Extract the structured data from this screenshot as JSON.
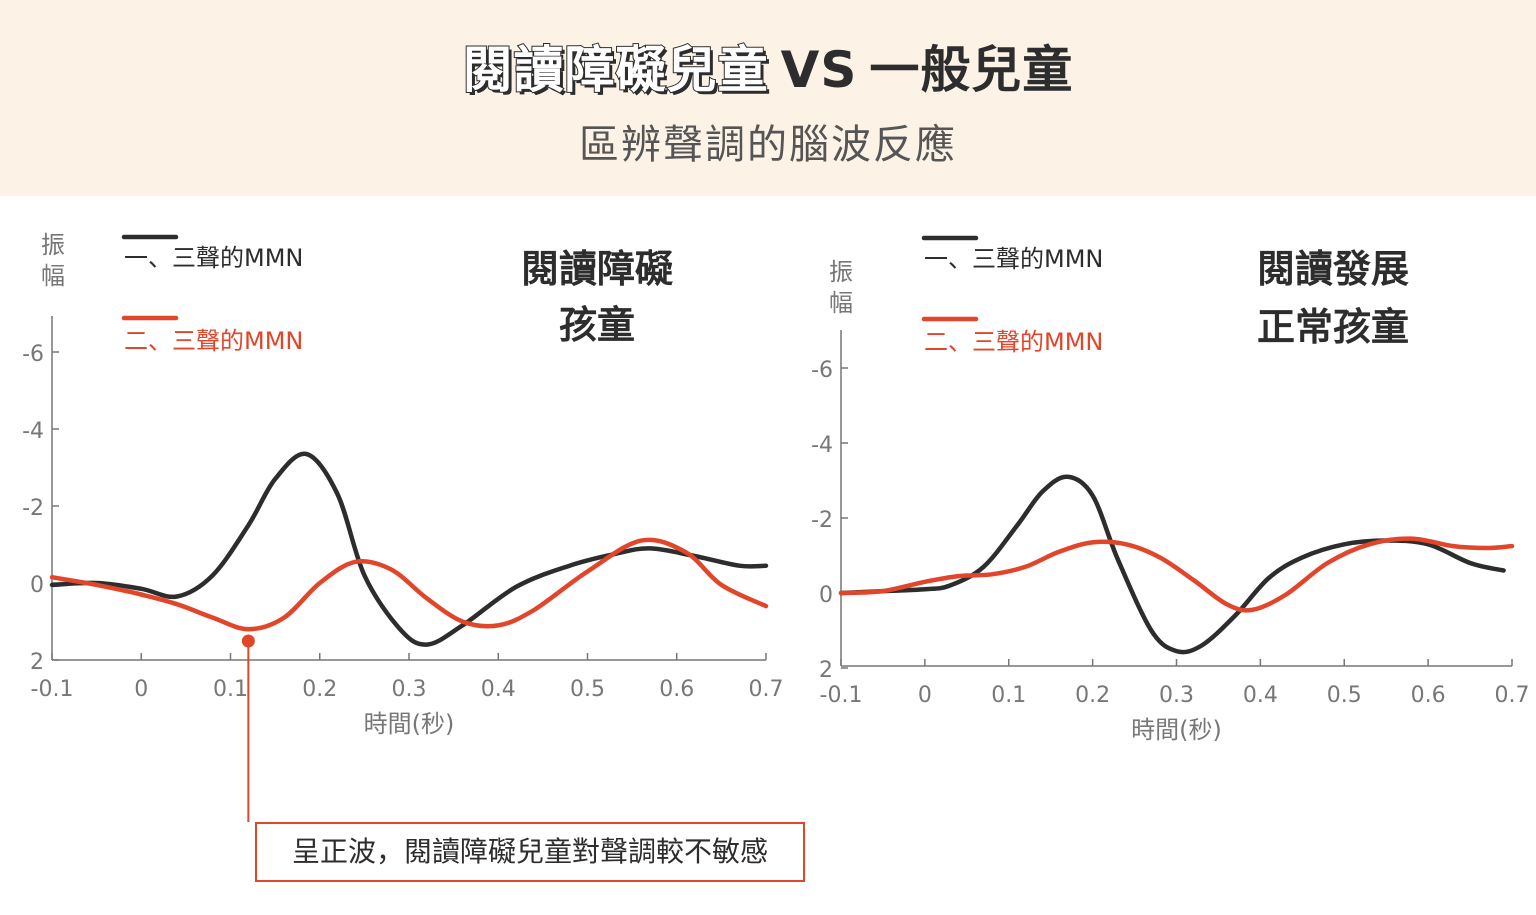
{
  "header": {
    "title_part1": "閱讀障礙兒童",
    "title_vs": "VS",
    "title_part2": "一般兒童",
    "subtitle": "區辨聲調的腦波反應"
  },
  "colors": {
    "tone1": "#2d2d2d",
    "tone2": "#e1462a",
    "axis": "#777777",
    "header_bg": "#fcf3e6"
  },
  "callout": {
    "text": "呈正波，閱讀障礙兒童對聲調較不敏感",
    "x_time": 0.12
  },
  "chart_data": [
    {
      "type": "line",
      "title_lines": [
        "閱讀障礙",
        "孩童"
      ],
      "xlabel": "時間(秒)",
      "ylabel": "振幅",
      "xlim": [
        -0.1,
        0.7
      ],
      "ylim": [
        2,
        -7
      ],
      "y_axis_inverted": true,
      "x_ticks": [
        "-0.1",
        "0",
        "0.1",
        "0.2",
        "0.3",
        "0.4",
        "0.5",
        "0.6",
        "0.7"
      ],
      "y_ticks": [
        "-6",
        "-4",
        "-2",
        "0",
        "2"
      ],
      "x_tick_values": [
        -0.1,
        0,
        0.1,
        0.2,
        0.3,
        0.4,
        0.5,
        0.6,
        0.7
      ],
      "y_tick_values": [
        -6,
        -4,
        -2,
        0,
        2
      ],
      "series": [
        {
          "name": "一、三聲的MMN",
          "color": "#2d2d2d",
          "x": [
            -0.1,
            -0.05,
            0.0,
            0.04,
            0.08,
            0.12,
            0.15,
            0.185,
            0.22,
            0.25,
            0.29,
            0.32,
            0.36,
            0.42,
            0.48,
            0.53,
            0.57,
            0.62,
            0.67,
            0.7
          ],
          "y": [
            0.05,
            0.0,
            0.15,
            0.35,
            -0.2,
            -1.5,
            -2.7,
            -3.35,
            -2.3,
            -0.2,
            1.2,
            1.6,
            1.1,
            0.1,
            -0.45,
            -0.75,
            -0.9,
            -0.7,
            -0.45,
            -0.45
          ]
        },
        {
          "name": "二、三聲的MMN",
          "color": "#e1462a",
          "x": [
            -0.1,
            -0.05,
            0.0,
            0.04,
            0.08,
            0.12,
            0.16,
            0.2,
            0.24,
            0.28,
            0.32,
            0.36,
            0.4,
            0.44,
            0.5,
            0.56,
            0.61,
            0.65,
            0.7
          ],
          "y": [
            -0.15,
            0.05,
            0.3,
            0.55,
            0.9,
            1.2,
            0.9,
            0.0,
            -0.55,
            -0.35,
            0.4,
            1.0,
            1.1,
            0.7,
            -0.3,
            -1.1,
            -0.8,
            0.05,
            0.6
          ]
        }
      ]
    },
    {
      "type": "line",
      "title_lines": [
        "閱讀發展",
        "正常孩童"
      ],
      "xlabel": "時間(秒)",
      "ylabel": "振幅",
      "xlim": [
        -0.1,
        0.7
      ],
      "ylim": [
        2,
        -7
      ],
      "y_axis_inverted": true,
      "x_ticks": [
        "-0.1",
        "0",
        "0.1",
        "0.2",
        "0.3",
        "0.4",
        "0.5",
        "0.6",
        "0.7"
      ],
      "y_ticks": [
        "-6",
        "-4",
        "-2",
        "0",
        "2"
      ],
      "x_tick_values": [
        -0.1,
        0,
        0.1,
        0.2,
        0.3,
        0.4,
        0.5,
        0.6,
        0.7
      ],
      "y_tick_values": [
        -6,
        -4,
        -2,
        0,
        2
      ],
      "series": [
        {
          "name": "一、三聲的MMN",
          "color": "#2d2d2d",
          "x": [
            -0.1,
            -0.05,
            0.0,
            0.03,
            0.07,
            0.11,
            0.14,
            0.17,
            0.2,
            0.23,
            0.27,
            0.3,
            0.33,
            0.37,
            0.41,
            0.45,
            0.5,
            0.55,
            0.6,
            0.65,
            0.69
          ],
          "y": [
            0.0,
            -0.05,
            -0.1,
            -0.2,
            -0.7,
            -1.8,
            -2.7,
            -3.1,
            -2.6,
            -0.9,
            1.0,
            1.55,
            1.4,
            0.6,
            -0.4,
            -0.95,
            -1.3,
            -1.4,
            -1.3,
            -0.8,
            -0.6
          ]
        },
        {
          "name": "二、三聲的MMN",
          "color": "#e1462a",
          "x": [
            -0.1,
            -0.05,
            0.0,
            0.04,
            0.08,
            0.12,
            0.16,
            0.2,
            0.24,
            0.28,
            0.32,
            0.36,
            0.39,
            0.43,
            0.48,
            0.53,
            0.58,
            0.63,
            0.67,
            0.7
          ],
          "y": [
            0.0,
            -0.05,
            -0.3,
            -0.45,
            -0.5,
            -0.7,
            -1.1,
            -1.35,
            -1.3,
            -0.95,
            -0.35,
            0.3,
            0.45,
            0.05,
            -0.8,
            -1.3,
            -1.45,
            -1.25,
            -1.2,
            -1.25
          ]
        }
      ]
    }
  ]
}
